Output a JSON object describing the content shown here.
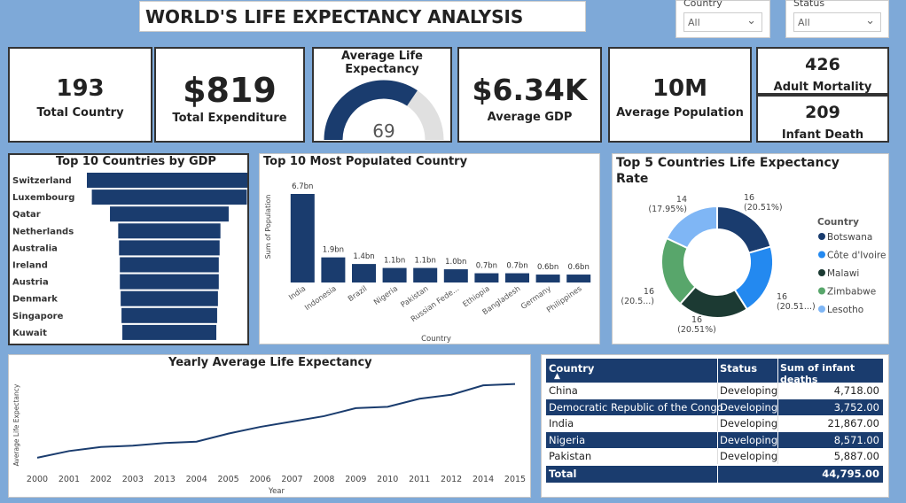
{
  "header": {
    "title": "WORLD'S LIFE EXPECTANCY ANALYSIS"
  },
  "slicers": {
    "country": {
      "label": "Country",
      "value": "All"
    },
    "status": {
      "label": "Status",
      "value": "All"
    }
  },
  "kpis": {
    "total_country": {
      "value": "193",
      "label": "Total Country"
    },
    "total_expenditure": {
      "value": "$819",
      "label": "Total Expenditure"
    },
    "avg_life": {
      "title": "Average Life Expectancy",
      "value": "69",
      "fraction": 0.69
    },
    "avg_gdp": {
      "value": "$6.34K",
      "label": "Average GDP"
    },
    "avg_population": {
      "value": "10M",
      "label": "Average Population"
    },
    "adult_mortality": {
      "value": "426",
      "label": "Adult Mortality"
    },
    "infant_death": {
      "value": "209",
      "label": "Infant Death"
    }
  },
  "colors": {
    "primary": "#1a3c6e",
    "background": "#7ea9d8"
  },
  "chart_data": [
    {
      "type": "bar",
      "orientation": "horizontal-funnel",
      "title": "Top 10 Countries by GDP",
      "categories": [
        "Switzerland",
        "Luxembourg",
        "Qatar",
        "Netherlands",
        "Australia",
        "Ireland",
        "Austria",
        "Denmark",
        "Singapore",
        "Kuwait"
      ],
      "values": [
        100,
        94,
        72,
        62,
        61,
        60,
        60,
        59,
        58,
        57
      ]
    },
    {
      "type": "bar",
      "title": "Top 10 Most Populated Country",
      "xlabel": "Country",
      "ylabel": "Sum of Population",
      "categories": [
        "India",
        "Indonesia",
        "Brazil",
        "Nigeria",
        "Pakistan",
        "Russian Fede...",
        "Ethiopia",
        "Bangladesh",
        "Germany",
        "Philippines"
      ],
      "values": [
        6.7,
        1.9,
        1.4,
        1.1,
        1.1,
        1.0,
        0.7,
        0.7,
        0.6,
        0.6
      ],
      "labels": [
        "6.7bn",
        "1.9bn",
        "1.4bn",
        "1.1bn",
        "1.1bn",
        "1.0bn",
        "0.7bn",
        "0.7bn",
        "0.6bn",
        "0.6bn"
      ]
    },
    {
      "type": "pie",
      "title": "Top 5 Countries Life Expectancy Rate",
      "legend_title": "Country",
      "legend_position": "right",
      "categories": [
        "Botswana",
        "Côte d'Ivoire",
        "Malawi",
        "Zimbabwe",
        "Lesotho"
      ],
      "values": [
        16,
        16,
        16,
        16,
        14
      ],
      "labels": [
        {
          "value": "16",
          "pct": "(20.51%)"
        },
        {
          "value": "16",
          "pct": "(20.51...)"
        },
        {
          "value": "16",
          "pct": "(20.51%)"
        },
        {
          "value": "16",
          "pct": "(20.5...)"
        },
        {
          "value": "14",
          "pct": "(17.95%)"
        }
      ],
      "colors": [
        "#1a3c6e",
        "#2389f0",
        "#1c3a33",
        "#58a66b",
        "#7fb6f5"
      ]
    },
    {
      "type": "line",
      "title": "Yearly Average Life Expectancy",
      "xlabel": "Year",
      "ylabel": "Average Life Expectancy",
      "x": [
        "2000",
        "2001",
        "2002",
        "2003",
        "2013",
        "2004",
        "2005",
        "2006",
        "2007",
        "2008",
        "2009",
        "2010",
        "2011",
        "2012",
        "2014",
        "2015"
      ],
      "y": [
        66.8,
        67.3,
        67.6,
        67.7,
        67.9,
        68.0,
        68.6,
        69.1,
        69.5,
        69.9,
        70.5,
        70.6,
        71.2,
        71.5,
        72.2,
        72.3
      ],
      "ylim": [
        66,
        73
      ]
    }
  ],
  "table": {
    "headers": [
      "Country",
      "Status",
      "Sum of infant deaths"
    ],
    "rows": [
      [
        "China",
        "Developing",
        "4,718.00"
      ],
      [
        "Democratic Republic of the Congo",
        "Developing",
        "3,752.00"
      ],
      [
        "India",
        "Developing",
        "21,867.00"
      ],
      [
        "Nigeria",
        "Developing",
        "8,571.00"
      ],
      [
        "Pakistan",
        "Developing",
        "5,887.00"
      ]
    ],
    "total": [
      "Total",
      "",
      "44,795.00"
    ]
  }
}
